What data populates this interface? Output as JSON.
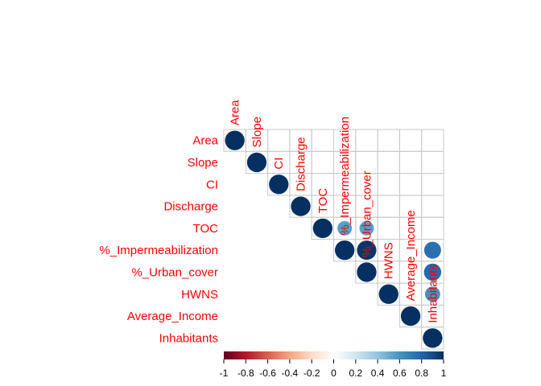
{
  "chart_data": {
    "type": "heatmap",
    "variables": [
      "Area",
      "Slope",
      "CI",
      "Discharge",
      "TOC",
      "%_Impermeabilization",
      "%_Urban_cover",
      "HWNS",
      "Average_Income",
      "Inhabitants"
    ],
    "triangle": "upper",
    "mark": "circle",
    "label_color": "#ff0000",
    "cells": [
      {
        "row": "Area",
        "col": "Area",
        "r": 1.0
      },
      {
        "row": "Slope",
        "col": "Slope",
        "r": 1.0
      },
      {
        "row": "CI",
        "col": "CI",
        "r": 1.0
      },
      {
        "row": "Discharge",
        "col": "Discharge",
        "r": 1.0
      },
      {
        "row": "TOC",
        "col": "TOC",
        "r": 1.0
      },
      {
        "row": "TOC",
        "col": "%_Impermeabilization",
        "r": 0.55
      },
      {
        "row": "%_Impermeabilization",
        "col": "%_Impermeabilization",
        "r": 1.0
      },
      {
        "row": "TOC",
        "col": "%_Urban_cover",
        "r": 0.55
      },
      {
        "row": "%_Impermeabilization",
        "col": "%_Urban_cover",
        "r": 0.98
      },
      {
        "row": "%_Urban_cover",
        "col": "%_Urban_cover",
        "r": 1.0
      },
      {
        "row": "HWNS",
        "col": "HWNS",
        "r": 1.0
      },
      {
        "row": "Average_Income",
        "col": "Average_Income",
        "r": 1.0
      },
      {
        "row": "%_Impermeabilization",
        "col": "Inhabitants",
        "r": 0.75
      },
      {
        "row": "%_Urban_cover",
        "col": "Inhabitants",
        "r": 0.78
      },
      {
        "row": "HWNS",
        "col": "Inhabitants",
        "r": 0.6
      },
      {
        "row": "Inhabitants",
        "col": "Inhabitants",
        "r": 1.0
      }
    ],
    "colorbar": {
      "range": [
        -1,
        1
      ],
      "ticks": [
        "-1",
        "-0.8",
        "-0.6",
        "-0.4",
        "-0.2",
        "0",
        "0.2",
        "0.4",
        "0.6",
        "0.8",
        "1"
      ],
      "colors": [
        "#67001f",
        "#b2182b",
        "#d6604d",
        "#f4a582",
        "#fddbc7",
        "#ffffff",
        "#d1e5f0",
        "#92c5de",
        "#4393c3",
        "#2166ac",
        "#053061"
      ]
    }
  }
}
